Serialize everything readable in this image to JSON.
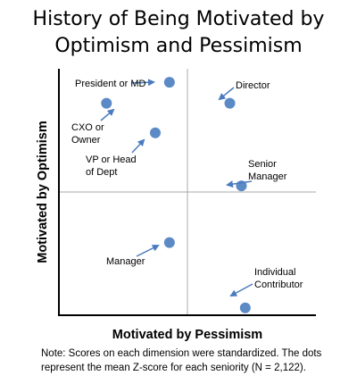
{
  "title_line1": "History of Being Motivated by",
  "title_line2": "Optimism and Pessimism",
  "note_line1": "Note: Scores on each dimension were standardized. The dots",
  "note_line2": "represent the mean Z-score for each seniority (N = 2,122).",
  "colors": {
    "dot": "#5b8ac6",
    "arrow": "#4a7bbf",
    "axis": "#000000",
    "divider": "#a8a8a8"
  },
  "chart_data": {
    "type": "scatter",
    "xlabel": "Motivated by Pessimism",
    "ylabel": "Motivated by Optimism",
    "xlim": [
      -1,
      1
    ],
    "ylim": [
      -1,
      1
    ],
    "grid": false,
    "points": [
      {
        "label": "President or MD",
        "x": -0.14,
        "y": 0.89
      },
      {
        "label": "CXO or Owner",
        "x": -0.63,
        "y": 0.72
      },
      {
        "label": "VP or Head of Dept",
        "x": -0.25,
        "y": 0.48
      },
      {
        "label": "Director",
        "x": 0.33,
        "y": 0.72
      },
      {
        "label": "Senior Manager",
        "x": 0.42,
        "y": 0.05
      },
      {
        "label": "Manager",
        "x": -0.14,
        "y": -0.41
      },
      {
        "label": "Individual Contributor",
        "x": 0.45,
        "y": -0.94
      }
    ]
  }
}
